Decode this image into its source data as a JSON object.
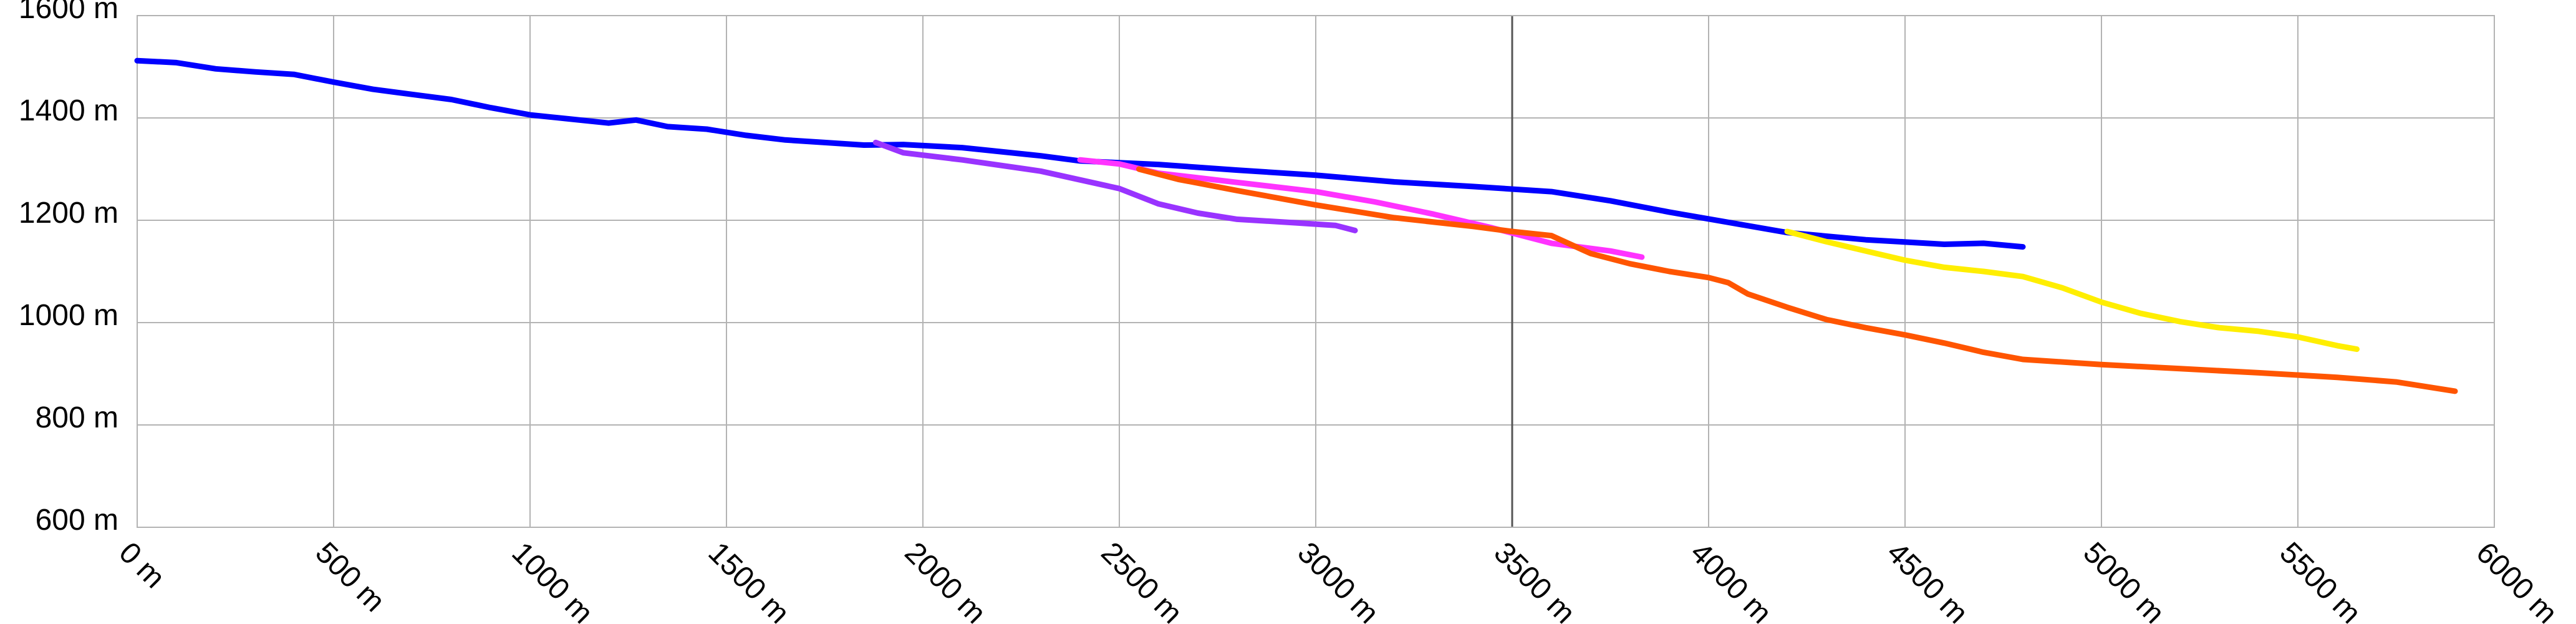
{
  "chart_data": {
    "type": "line",
    "title": "",
    "xlabel": "",
    "ylabel": "",
    "xlim": [
      0,
      6000
    ],
    "ylim": [
      600,
      1600
    ],
    "x_ticks": [
      "0 m",
      "500 m",
      "1000 m",
      "1500 m",
      "2000 m",
      "2500 m",
      "3000 m",
      "3500 m",
      "4000 m",
      "4500 m",
      "5000 m",
      "5500 m",
      "6000 m"
    ],
    "y_ticks": [
      "600 m",
      "800 m",
      "1000 m",
      "1200 m",
      "1400 m",
      "1600 m"
    ],
    "grid": true,
    "legend": "none",
    "series": [
      {
        "color": "#0000ff",
        "points": [
          [
            0,
            1512
          ],
          [
            100,
            1508
          ],
          [
            200,
            1496
          ],
          [
            300,
            1490
          ],
          [
            400,
            1485
          ],
          [
            500,
            1470
          ],
          [
            600,
            1456
          ],
          [
            700,
            1446
          ],
          [
            800,
            1436
          ],
          [
            900,
            1420
          ],
          [
            1000,
            1406
          ],
          [
            1100,
            1398
          ],
          [
            1200,
            1390
          ],
          [
            1270,
            1396
          ],
          [
            1350,
            1383
          ],
          [
            1450,
            1378
          ],
          [
            1550,
            1366
          ],
          [
            1650,
            1357
          ],
          [
            1750,
            1352
          ],
          [
            1850,
            1347
          ],
          [
            1950,
            1348
          ],
          [
            2100,
            1342
          ],
          [
            2300,
            1326
          ],
          [
            2400,
            1316
          ],
          [
            2600,
            1309
          ],
          [
            2800,
            1298
          ],
          [
            3000,
            1288
          ],
          [
            3200,
            1275
          ],
          [
            3400,
            1266
          ],
          [
            3600,
            1256
          ],
          [
            3750,
            1238
          ],
          [
            3900,
            1216
          ],
          [
            4050,
            1196
          ],
          [
            4200,
            1176
          ],
          [
            4400,
            1162
          ],
          [
            4600,
            1153
          ],
          [
            4700,
            1155
          ],
          [
            4800,
            1148
          ]
        ]
      },
      {
        "color": "#9933ff",
        "points": [
          [
            1880,
            1352
          ],
          [
            1950,
            1332
          ],
          [
            2100,
            1318
          ],
          [
            2300,
            1296
          ],
          [
            2500,
            1262
          ],
          [
            2600,
            1232
          ],
          [
            2700,
            1214
          ],
          [
            2800,
            1202
          ],
          [
            2950,
            1195
          ],
          [
            3050,
            1190
          ],
          [
            3100,
            1180
          ]
        ]
      },
      {
        "color": "#ff33ff",
        "points": [
          [
            2400,
            1318
          ],
          [
            2500,
            1310
          ],
          [
            2600,
            1292
          ],
          [
            2800,
            1274
          ],
          [
            3000,
            1256
          ],
          [
            3150,
            1236
          ],
          [
            3300,
            1212
          ],
          [
            3450,
            1185
          ],
          [
            3600,
            1155
          ],
          [
            3750,
            1140
          ],
          [
            3830,
            1128
          ]
        ]
      },
      {
        "color": "#ff5500",
        "points": [
          [
            2550,
            1300
          ],
          [
            2650,
            1280
          ],
          [
            2800,
            1258
          ],
          [
            3000,
            1230
          ],
          [
            3200,
            1205
          ],
          [
            3400,
            1188
          ],
          [
            3500,
            1178
          ],
          [
            3600,
            1170
          ],
          [
            3700,
            1135
          ],
          [
            3800,
            1115
          ],
          [
            3900,
            1100
          ],
          [
            4000,
            1088
          ],
          [
            4050,
            1078
          ],
          [
            4100,
            1056
          ],
          [
            4200,
            1030
          ],
          [
            4300,
            1006
          ],
          [
            4400,
            990
          ],
          [
            4500,
            976
          ],
          [
            4600,
            960
          ],
          [
            4700,
            942
          ],
          [
            4800,
            928
          ],
          [
            5000,
            918
          ],
          [
            5200,
            910
          ],
          [
            5400,
            902
          ],
          [
            5600,
            893
          ],
          [
            5750,
            884
          ],
          [
            5900,
            866
          ]
        ]
      },
      {
        "color": "#ffee00",
        "points": [
          [
            4200,
            1178
          ],
          [
            4300,
            1158
          ],
          [
            4400,
            1140
          ],
          [
            4500,
            1122
          ],
          [
            4600,
            1108
          ],
          [
            4700,
            1100
          ],
          [
            4800,
            1090
          ],
          [
            4900,
            1068
          ],
          [
            5000,
            1040
          ],
          [
            5100,
            1018
          ],
          [
            5200,
            1002
          ],
          [
            5300,
            990
          ],
          [
            5400,
            983
          ],
          [
            5500,
            972
          ],
          [
            5600,
            955
          ],
          [
            5650,
            948
          ]
        ]
      }
    ]
  }
}
